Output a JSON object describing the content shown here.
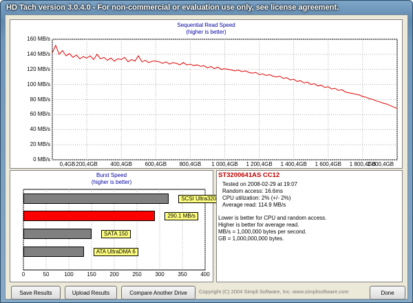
{
  "window": {
    "title": "HD Tach version 3.0.4.0  - For non-commercial or evaluation use only, see license agreement."
  },
  "read_chart": {
    "title": "Sequential Read Speed",
    "subtitle": "(higher is better)",
    "y_ticks": [
      "160 MB/s",
      "140 MB/s",
      "120 MB/s",
      "100 MB/s",
      "80 MB/s",
      "60 MB/s",
      "40 MB/s",
      "20 MB/s",
      "0 MB/s"
    ],
    "x_ticks": [
      "0,4GB",
      "200,4GB",
      "400,4GB",
      "600,4GB",
      "800,4GB",
      "1 000,4GB",
      "1 200,4GB",
      "1 400,4GB",
      "1 600,4GB",
      "1 800,4GB",
      "2 000,4GB"
    ]
  },
  "burst_chart": {
    "title": "Burst Speed",
    "subtitle": "(higher is better)",
    "x_ticks": [
      "0",
      "50",
      "100",
      "150",
      "200",
      "250",
      "300",
      "350",
      "400"
    ]
  },
  "drive_info": {
    "model": "ST3200641AS CC12",
    "tested_on": "Tested on 2008-02-29 at 19:07",
    "random_access": "Random access: 16.6ms",
    "cpu": "CPU utilization: 2% (+/- 2%)",
    "avg_read": "Average read: 114.9 MB/s",
    "note1": "Lower is better for CPU and random access.",
    "note2": "Higher is better for average read.",
    "note3": "MB/s = 1,000,000 bytes per second.",
    "note4": "GB = 1,000,000,000 bytes."
  },
  "buttons": {
    "save": "Save Results",
    "upload": "Upload Results",
    "compare": "Compare Another Drive",
    "done": "Done"
  },
  "copyright": "Copyright (C) 2004 Simpli Software, Inc. www.simplisoftware.com",
  "chart_data": [
    {
      "type": "line",
      "title": "Sequential Read Speed",
      "subtitle": "(higher is better)",
      "xlabel": "",
      "ylabel": "",
      "x_unit": "GB",
      "y_unit": "MB/s",
      "xlim": [
        0.4,
        2000.4
      ],
      "ylim": [
        0,
        160
      ],
      "grid": true,
      "color": "#e00000",
      "x": [
        0.4,
        20,
        40,
        60,
        80,
        100,
        120,
        140,
        160,
        180,
        200,
        220,
        240,
        260,
        280,
        300,
        320,
        340,
        360,
        380,
        400,
        420,
        440,
        460,
        480,
        500,
        520,
        540,
        560,
        580,
        600,
        620,
        640,
        660,
        680,
        700,
        720,
        740,
        760,
        780,
        800,
        820,
        840,
        860,
        880,
        900,
        920,
        940,
        960,
        980,
        1000,
        1020,
        1040,
        1060,
        1080,
        1100,
        1120,
        1140,
        1160,
        1180,
        1200,
        1220,
        1240,
        1260,
        1280,
        1300,
        1320,
        1340,
        1360,
        1380,
        1400,
        1420,
        1440,
        1460,
        1480,
        1500,
        1520,
        1540,
        1560,
        1580,
        1600,
        1620,
        1640,
        1660,
        1680,
        1700,
        1720,
        1740,
        1760,
        1780,
        1800,
        1820,
        1840,
        1860,
        1880,
        1900,
        1920,
        1940,
        1960,
        1980,
        2000.4
      ],
      "y": [
        142,
        152,
        140,
        145,
        138,
        141,
        136,
        139,
        134,
        137,
        135,
        138,
        133,
        140,
        134,
        136,
        132,
        135,
        131,
        134,
        133,
        136,
        130,
        133,
        131,
        138,
        130,
        132,
        129,
        131,
        131,
        130,
        128,
        130,
        127,
        129,
        128,
        126,
        129,
        126,
        127,
        125,
        126,
        124,
        125,
        122,
        124,
        121,
        123,
        120,
        121,
        120,
        119,
        118,
        119,
        117,
        118,
        116,
        115,
        116,
        113,
        114,
        112,
        113,
        111,
        110,
        111,
        108,
        109,
        106,
        107,
        104,
        105,
        102,
        103,
        100,
        101,
        98,
        99,
        96,
        97,
        94,
        95,
        92,
        93,
        90,
        89,
        88,
        87,
        86,
        84,
        83,
        81,
        80,
        78,
        77,
        75,
        74,
        72,
        70,
        68
      ]
    },
    {
      "type": "bar",
      "orientation": "horizontal",
      "title": "Burst Speed",
      "subtitle": "(higher is better)",
      "xlim": [
        0,
        400
      ],
      "categories": [
        "SCSI Ultra320",
        "290.1 MB/s",
        "SATA 150",
        "ATA UltraDMA 6"
      ],
      "values": [
        320,
        290.1,
        150,
        133
      ],
      "colors": [
        "#808080",
        "#ff0000",
        "#808080",
        "#808080"
      ]
    }
  ]
}
